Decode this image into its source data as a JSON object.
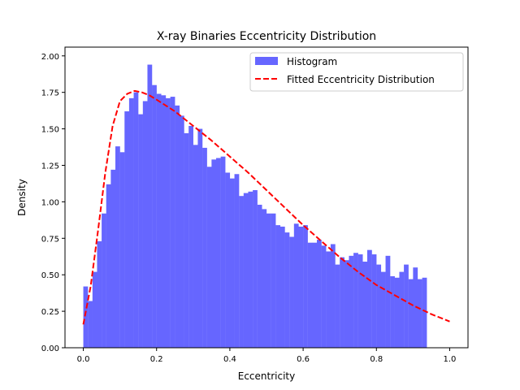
{
  "chart_data": {
    "type": "bar",
    "title": "X-ray Binaries Eccentricity Distribution",
    "xlabel": "Eccentricity",
    "ylabel": "Density",
    "xlim": [
      -0.05,
      1.05
    ],
    "ylim": [
      0,
      2.06
    ],
    "xticks": [
      0.0,
      0.2,
      0.4,
      0.6,
      0.8,
      1.0
    ],
    "xtick_labels": [
      "0.0",
      "0.2",
      "0.4",
      "0.6",
      "0.8",
      "1.0"
    ],
    "yticks": [
      0.0,
      0.25,
      0.5,
      0.75,
      1.0,
      1.25,
      1.5,
      1.75,
      2.0
    ],
    "ytick_labels": [
      "0.00",
      "0.25",
      "0.50",
      "0.75",
      "1.00",
      "1.25",
      "1.50",
      "1.75",
      "2.00"
    ],
    "legend_position": "top-right",
    "colors": {
      "histogram": "#6666ff",
      "fit": "#ff0000"
    },
    "series": [
      {
        "name": "Histogram",
        "kind": "histogram",
        "bin_start": 0.0,
        "bin_width": 0.0125,
        "values": [
          0.42,
          0.32,
          0.52,
          0.73,
          0.92,
          1.12,
          1.22,
          1.38,
          1.34,
          1.62,
          1.71,
          1.75,
          1.6,
          1.69,
          1.94,
          1.8,
          1.74,
          1.73,
          1.71,
          1.72,
          1.66,
          1.59,
          1.47,
          1.52,
          1.39,
          1.5,
          1.37,
          1.24,
          1.29,
          1.3,
          1.31,
          1.2,
          1.16,
          1.19,
          1.04,
          1.06,
          1.07,
          1.08,
          0.98,
          0.95,
          0.92,
          0.92,
          0.84,
          0.83,
          0.79,
          0.76,
          0.85,
          0.83,
          0.84,
          0.72,
          0.72,
          0.74,
          0.7,
          0.66,
          0.71,
          0.57,
          0.62,
          0.6,
          0.63,
          0.65,
          0.64,
          0.59,
          0.67,
          0.64,
          0.57,
          0.52,
          0.63,
          0.49,
          0.48,
          0.52,
          0.57,
          0.47,
          0.55,
          0.47,
          0.48
        ]
      },
      {
        "name": "Fitted Eccentricity Distribution",
        "kind": "line",
        "x": [
          0.0,
          0.02,
          0.04,
          0.06,
          0.08,
          0.1,
          0.12,
          0.14,
          0.16,
          0.18,
          0.2,
          0.25,
          0.3,
          0.35,
          0.4,
          0.45,
          0.5,
          0.55,
          0.6,
          0.65,
          0.7,
          0.75,
          0.8,
          0.85,
          0.9,
          0.95,
          1.0
        ],
        "y": [
          0.16,
          0.42,
          0.8,
          1.2,
          1.52,
          1.69,
          1.74,
          1.76,
          1.75,
          1.73,
          1.7,
          1.62,
          1.52,
          1.42,
          1.31,
          1.2,
          1.08,
          0.96,
          0.84,
          0.73,
          0.62,
          0.52,
          0.43,
          0.36,
          0.29,
          0.23,
          0.18
        ]
      }
    ]
  }
}
